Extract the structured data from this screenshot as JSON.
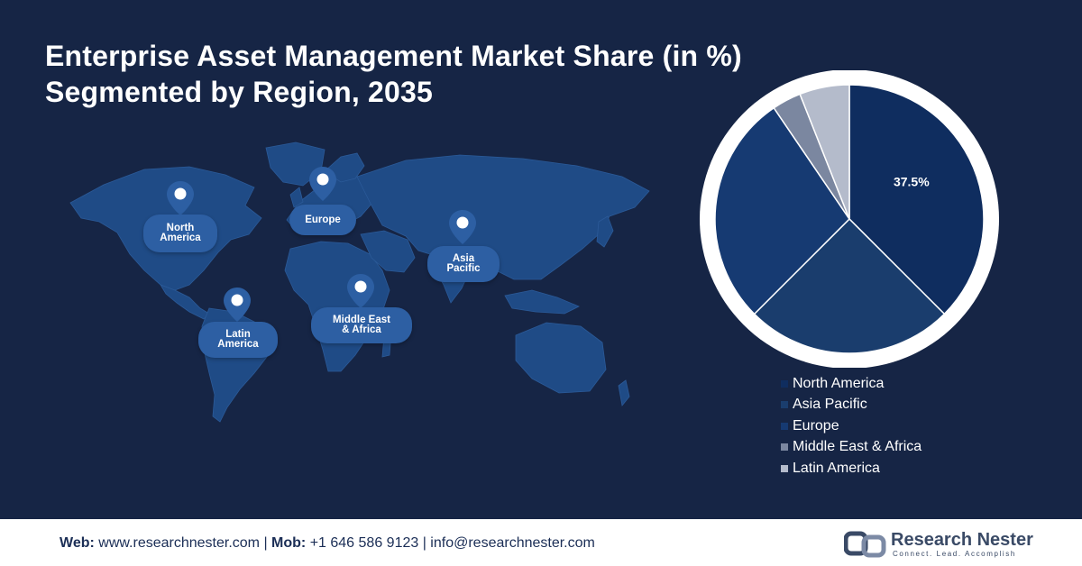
{
  "title": {
    "line1": "Enterprise Asset Management Market Share (in %)",
    "line2": "Segmented by Region, 2035"
  },
  "map": {
    "regions": [
      {
        "label_lines": [
          "North",
          "America"
        ]
      },
      {
        "label_lines": [
          "Europe"
        ]
      },
      {
        "label_lines": [
          "Asia",
          "Pacific"
        ]
      },
      {
        "label_lines": [
          "Middle East",
          "& Africa"
        ]
      },
      {
        "label_lines": [
          "Latin",
          "America"
        ]
      }
    ]
  },
  "chart_data": {
    "type": "pie",
    "labels": [
      "North America",
      "Asia Pacific",
      "Europe",
      "Middle East & Africa",
      "Latin America"
    ],
    "values": [
      37.5,
      25.0,
      28.0,
      3.5,
      6.0
    ],
    "data_labels": [
      "37.5%",
      "",
      "",
      "",
      ""
    ],
    "colors": [
      "#0f2d5f",
      "#1a3d6d",
      "#163a72",
      "#7b87a0",
      "#b4bbcb"
    ],
    "legend_position": "below-right"
  },
  "legend": {
    "items": [
      "North America",
      "Asia Pacific",
      "Europe",
      "Middle East & Africa",
      "Latin America"
    ]
  },
  "footer": {
    "web_label": "Web:",
    "web_value": " www.researchnester.com | ",
    "mob_label": "Mob:",
    "mob_value": " +1 646 586 9123 | info@researchnester.com",
    "logo_name": "Research Nester",
    "logo_tagline": "Connect. Lead. Accomplish"
  },
  "colors": {
    "background": "#162545",
    "map": "#1f4b86",
    "pill": "#2d5fa3",
    "footer_text": "#1b2e56"
  }
}
